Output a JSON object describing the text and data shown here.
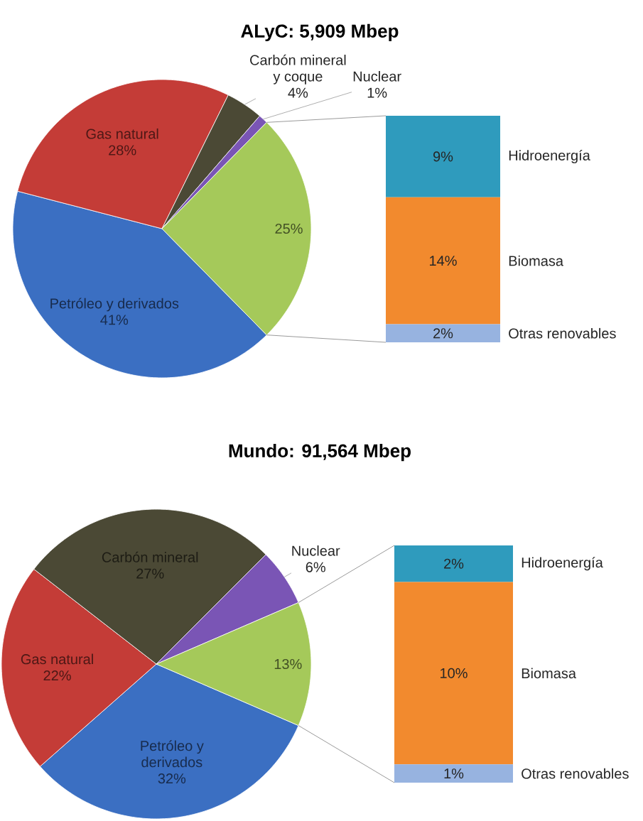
{
  "chart_data": [
    {
      "type": "pie",
      "title": "ALyC: 5,909 Mbep",
      "categories": [
        "Petróleo y derivados",
        "Gas natural",
        "Carbón mineral y coque",
        "Nuclear",
        null
      ],
      "values": [
        41,
        28,
        4,
        1,
        25
      ],
      "value_labels": [
        "41%",
        "28%",
        "4%",
        "1%",
        "25%"
      ],
      "colors": [
        "#3b6fc2",
        "#c43c37",
        "#4b4935",
        "#7a55b5",
        "#a5c95a"
      ]
    },
    {
      "type": "bar",
      "stacked": true,
      "categories": [
        null
      ],
      "series": [
        {
          "name": "Otras renovables",
          "color": "#97b3e0",
          "values": [
            2
          ],
          "value_labels": [
            "2%"
          ]
        },
        {
          "name": "Biomasa",
          "color": "#f28a2e",
          "values": [
            14
          ],
          "value_labels": [
            "14%"
          ]
        },
        {
          "name": "Hidroenergía",
          "color": "#2f9bbd",
          "values": [
            9
          ],
          "value_labels": [
            "9%"
          ]
        }
      ]
    },
    {
      "type": "pie",
      "title": "Mundo: 91,564 Mbep",
      "categories": [
        "Petróleo y derivados",
        "Gas natural",
        "Carbón mineral",
        "Nuclear",
        null
      ],
      "values": [
        32,
        22,
        27,
        6,
        13
      ],
      "value_labels": [
        "32%",
        "22%",
        "27%",
        "6%",
        "13%"
      ],
      "colors": [
        "#3b6fc2",
        "#c43c37",
        "#4b4935",
        "#7a55b5",
        "#a5c95a"
      ]
    },
    {
      "type": "bar",
      "stacked": true,
      "categories": [
        null
      ],
      "series": [
        {
          "name": "Otras renovables",
          "color": "#97b3e0",
          "values": [
            1
          ],
          "value_labels": [
            "1%"
          ]
        },
        {
          "name": "Biomasa",
          "color": "#f28a2e",
          "values": [
            10
          ],
          "value_labels": [
            "10%"
          ]
        },
        {
          "name": "Hidroenergía",
          "color": "#2f9bbd",
          "values": [
            2
          ],
          "value_labels": [
            "2%"
          ]
        }
      ]
    }
  ]
}
